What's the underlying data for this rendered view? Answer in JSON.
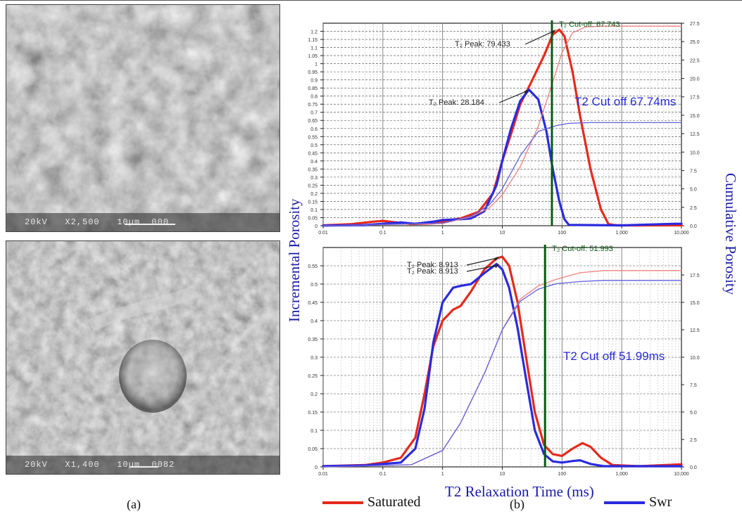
{
  "panel_labels": {
    "a": "(a)",
    "b": "(b)"
  },
  "sem_images": [
    {
      "caption": "20kV   X2,500   10µm  000"
    },
    {
      "caption": "20kV   X1,400   10µm  0082"
    }
  ],
  "axis_labels": {
    "left": "Incremental Porosity",
    "right": "Cumulative Porosity",
    "bottom": "T2 Relaxation Time (ms)"
  },
  "legend": [
    {
      "label": "Saturated",
      "color": "#e62a1c"
    },
    {
      "label": "Swr",
      "color": "#2a2ae0"
    }
  ],
  "chart_data": [
    {
      "type": "line",
      "xscale": "log",
      "xlim": [
        0.01,
        10000
      ],
      "xticks": [
        "0.01",
        "0.1",
        "1",
        "10",
        "100",
        "1,000",
        "10,000"
      ],
      "ylim": [
        0,
        1.25
      ],
      "yticks": [
        "0",
        "0.05",
        "0.1",
        "0.15",
        "0.2",
        "0.25",
        "0.3",
        "0.35",
        "0.4",
        "0.45",
        "0.5",
        "0.55",
        "0.6",
        "0.65",
        "0.7",
        "0.75",
        "0.8",
        "0.85",
        "0.9",
        "0.95",
        "1",
        "1.05",
        "1.1",
        "1.15",
        "1.2"
      ],
      "y2lim": [
        0,
        27.5
      ],
      "y2ticks": [
        "0.0",
        "2.5",
        "5.0",
        "7.5",
        "10.0",
        "12.5",
        "15.0",
        "17.5",
        "20.0",
        "22.5",
        "25.0",
        "27.5"
      ],
      "cutoff": {
        "x": 67.743,
        "label": "T₂ Cut-off: 67.743"
      },
      "cutoff_text": "T2 Cut off 67.74ms",
      "peaks": [
        {
          "label": "T₂ Peak: 79.433",
          "x": 79.433,
          "y": 1.21
        },
        {
          "label": "T₂ Peak: 28.184",
          "x": 28.184,
          "y": 0.84
        }
      ],
      "series": [
        {
          "color": "#e62a1c",
          "width": 3.2,
          "values": [
            [
              0.01,
              0.002
            ],
            [
              0.03,
              0.01
            ],
            [
              0.07,
              0.025
            ],
            [
              0.1,
              0.03
            ],
            [
              0.15,
              0.022
            ],
            [
              0.3,
              0.01
            ],
            [
              0.7,
              0.015
            ],
            [
              1,
              0.025
            ],
            [
              2,
              0.045
            ],
            [
              4,
              0.085
            ],
            [
              7,
              0.2
            ],
            [
              10,
              0.4
            ],
            [
              15,
              0.6
            ],
            [
              20,
              0.75
            ],
            [
              30,
              0.88
            ],
            [
              50,
              1.05
            ],
            [
              70,
              1.18
            ],
            [
              90,
              1.21
            ],
            [
              110,
              1.17
            ],
            [
              150,
              0.95
            ],
            [
              200,
              0.68
            ],
            [
              300,
              0.35
            ],
            [
              450,
              0.1
            ],
            [
              600,
              0.01
            ],
            [
              800,
              0.002
            ],
            [
              10000,
              0.002
            ]
          ]
        },
        {
          "color": "#2a2ae0",
          "width": 3.2,
          "values": [
            [
              0.01,
              0.001
            ],
            [
              0.05,
              0.004
            ],
            [
              0.1,
              0.012
            ],
            [
              0.2,
              0.02
            ],
            [
              0.35,
              0.012
            ],
            [
              0.7,
              0.025
            ],
            [
              1,
              0.035
            ],
            [
              2,
              0.04
            ],
            [
              3,
              0.045
            ],
            [
              5,
              0.09
            ],
            [
              8,
              0.25
            ],
            [
              10,
              0.4
            ],
            [
              14,
              0.6
            ],
            [
              20,
              0.77
            ],
            [
              28,
              0.84
            ],
            [
              40,
              0.78
            ],
            [
              55,
              0.58
            ],
            [
              70,
              0.35
            ],
            [
              90,
              0.15
            ],
            [
              110,
              0.04
            ],
            [
              130,
              0.005
            ],
            [
              1000,
              0.002
            ],
            [
              8000,
              0.012
            ],
            [
              10000,
              0.012
            ]
          ]
        },
        {
          "color": "#f08080",
          "width": 1.3,
          "axis": "right",
          "values": [
            [
              0.01,
              0
            ],
            [
              1,
              0.3
            ],
            [
              3,
              1.2
            ],
            [
              6,
              2.4
            ],
            [
              10,
              4.2
            ],
            [
              20,
              8
            ],
            [
              40,
              13.5
            ],
            [
              70,
              19.5
            ],
            [
              100,
              23.5
            ],
            [
              150,
              26.2
            ],
            [
              250,
              27
            ],
            [
              500,
              27.1
            ],
            [
              10000,
              27.1
            ]
          ]
        },
        {
          "color": "#6060e0",
          "width": 1.3,
          "axis": "right",
          "values": [
            [
              0.01,
              0
            ],
            [
              1,
              0.35
            ],
            [
              3,
              1.3
            ],
            [
              6,
              2.8
            ],
            [
              10,
              5
            ],
            [
              20,
              9.5
            ],
            [
              40,
              12.8
            ],
            [
              80,
              13.6
            ],
            [
              130,
              13.9
            ],
            [
              300,
              14
            ],
            [
              10000,
              14
            ]
          ]
        }
      ]
    },
    {
      "type": "line",
      "xscale": "log",
      "xlim": [
        0.01,
        10000
      ],
      "xticks": [
        "0.01",
        "0.1",
        "1",
        "10",
        "100",
        "1,000",
        "10,000"
      ],
      "ylim": [
        0,
        0.6
      ],
      "yticks": [
        "0",
        "0.05",
        "0.1",
        "0.15",
        "0.2",
        "0.25",
        "0.3",
        "0.35",
        "0.4",
        "0.45",
        "0.5",
        "0.55"
      ],
      "y2lim": [
        0,
        20
      ],
      "y2ticks": [
        "0.0",
        "2.5",
        "5.0",
        "7.5",
        "10.0",
        "12.5",
        "15.0",
        "17.5"
      ],
      "cutoff": {
        "x": 51.993,
        "label": "T₂ Cut-off: 51.993"
      },
      "cutoff_text": "T2 Cut off 51.99ms",
      "peaks": [
        {
          "label": "T₂ Peak: 8.913",
          "x": 8.913,
          "y": 0.575
        },
        {
          "label": "T₂ Peak: 8.913",
          "x": 8.913,
          "y": 0.555
        }
      ],
      "series": [
        {
          "color": "#e62a1c",
          "width": 3.2,
          "values": [
            [
              0.01,
              0.002
            ],
            [
              0.05,
              0.005
            ],
            [
              0.1,
              0.012
            ],
            [
              0.2,
              0.025
            ],
            [
              0.35,
              0.08
            ],
            [
              0.5,
              0.2
            ],
            [
              0.7,
              0.33
            ],
            [
              1,
              0.4
            ],
            [
              1.5,
              0.43
            ],
            [
              2,
              0.44
            ],
            [
              3,
              0.48
            ],
            [
              5,
              0.54
            ],
            [
              8,
              0.57
            ],
            [
              10,
              0.575
            ],
            [
              13,
              0.55
            ],
            [
              18,
              0.45
            ],
            [
              25,
              0.3
            ],
            [
              35,
              0.15
            ],
            [
              50,
              0.06
            ],
            [
              70,
              0.035
            ],
            [
              100,
              0.03
            ],
            [
              150,
              0.05
            ],
            [
              220,
              0.065
            ],
            [
              300,
              0.055
            ],
            [
              450,
              0.025
            ],
            [
              700,
              0.005
            ],
            [
              2000,
              0.002
            ],
            [
              10000,
              0.007
            ]
          ]
        },
        {
          "color": "#2a2ae0",
          "width": 3.2,
          "values": [
            [
              0.01,
              0.002
            ],
            [
              0.05,
              0.004
            ],
            [
              0.1,
              0.008
            ],
            [
              0.2,
              0.012
            ],
            [
              0.35,
              0.05
            ],
            [
              0.5,
              0.16
            ],
            [
              0.7,
              0.34
            ],
            [
              1,
              0.45
            ],
            [
              1.5,
              0.49
            ],
            [
              2,
              0.495
            ],
            [
              3,
              0.5
            ],
            [
              5,
              0.53
            ],
            [
              8,
              0.555
            ],
            [
              10,
              0.54
            ],
            [
              13,
              0.49
            ],
            [
              18,
              0.38
            ],
            [
              25,
              0.24
            ],
            [
              35,
              0.1
            ],
            [
              50,
              0.035
            ],
            [
              70,
              0.015
            ],
            [
              100,
              0.012
            ],
            [
              150,
              0.016
            ],
            [
              200,
              0.018
            ],
            [
              300,
              0.008
            ],
            [
              500,
              0.002
            ],
            [
              10000,
              0.002
            ]
          ]
        },
        {
          "color": "#f08080",
          "width": 1.3,
          "axis": "right",
          "values": [
            [
              0.01,
              0
            ],
            [
              0.3,
              0.2
            ],
            [
              1,
              1.5
            ],
            [
              2,
              4
            ],
            [
              5,
              8.5
            ],
            [
              10,
              12.5
            ],
            [
              20,
              15.3
            ],
            [
              40,
              16.5
            ],
            [
              80,
              17.1
            ],
            [
              200,
              17.7
            ],
            [
              500,
              17.9
            ],
            [
              10000,
              17.9
            ]
          ]
        },
        {
          "color": "#6060e0",
          "width": 1.3,
          "axis": "right",
          "values": [
            [
              0.01,
              0
            ],
            [
              0.3,
              0.2
            ],
            [
              1,
              1.5
            ],
            [
              2,
              4
            ],
            [
              5,
              8.5
            ],
            [
              10,
              12.5
            ],
            [
              20,
              15.1
            ],
            [
              40,
              16.2
            ],
            [
              80,
              16.7
            ],
            [
              200,
              16.9
            ],
            [
              500,
              17
            ],
            [
              10000,
              17
            ]
          ]
        }
      ]
    }
  ]
}
